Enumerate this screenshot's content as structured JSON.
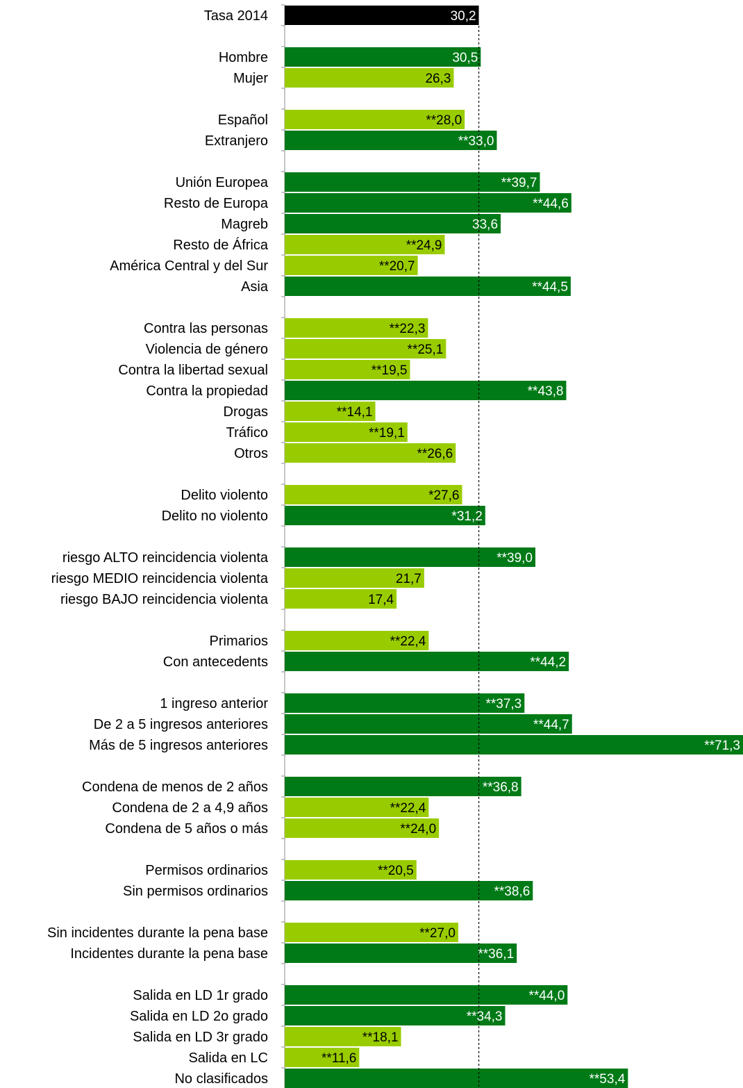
{
  "chart_data": {
    "type": "bar",
    "orientation": "horizontal",
    "title": "",
    "xlabel": "",
    "ylabel": "",
    "xlim": [
      0,
      71.3
    ],
    "reference_line": 30.2,
    "colors": {
      "total": "#000000",
      "above": "#007a17",
      "below": "#99cc00"
    },
    "groups": [
      [
        {
          "label": "Tasa 2014",
          "value": 30.2,
          "display": "30,2",
          "kind": "total"
        }
      ],
      [
        {
          "label": "Hombre",
          "value": 30.5,
          "display": "30,5",
          "kind": "above"
        },
        {
          "label": "Mujer",
          "value": 26.3,
          "display": "26,3",
          "kind": "below"
        }
      ],
      [
        {
          "label": "Español",
          "value": 28.0,
          "display": "**28,0",
          "kind": "below"
        },
        {
          "label": "Extranjero",
          "value": 33.0,
          "display": "**33,0",
          "kind": "above"
        }
      ],
      [
        {
          "label": "Unión Europea",
          "value": 39.7,
          "display": "**39,7",
          "kind": "above"
        },
        {
          "label": "Resto de Europa",
          "value": 44.6,
          "display": "**44,6",
          "kind": "above"
        },
        {
          "label": "Magreb",
          "value": 33.6,
          "display": "33,6",
          "kind": "above"
        },
        {
          "label": "Resto de África",
          "value": 24.9,
          "display": "**24,9",
          "kind": "below"
        },
        {
          "label": "América Central y del Sur",
          "value": 20.7,
          "display": "**20,7",
          "kind": "below"
        },
        {
          "label": "Asia",
          "value": 44.5,
          "display": "**44,5",
          "kind": "above"
        }
      ],
      [
        {
          "label": "Contra las personas",
          "value": 22.3,
          "display": "**22,3",
          "kind": "below"
        },
        {
          "label": "Violencia de género",
          "value": 25.1,
          "display": "**25,1",
          "kind": "below"
        },
        {
          "label": "Contra la libertad sexual",
          "value": 19.5,
          "display": "**19,5",
          "kind": "below"
        },
        {
          "label": "Contra la propiedad",
          "value": 43.8,
          "display": "**43,8",
          "kind": "above"
        },
        {
          "label": "Drogas",
          "value": 14.1,
          "display": "**14,1",
          "kind": "below"
        },
        {
          "label": "Tráfico",
          "value": 19.1,
          "display": "**19,1",
          "kind": "below"
        },
        {
          "label": "Otros",
          "value": 26.6,
          "display": "**26,6",
          "kind": "below"
        }
      ],
      [
        {
          "label": "Delito violento",
          "value": 27.6,
          "display": "*27,6",
          "kind": "below"
        },
        {
          "label": "Delito no violento",
          "value": 31.2,
          "display": "*31,2",
          "kind": "above"
        }
      ],
      [
        {
          "label": "riesgo ALTO reincidencia violenta",
          "value": 39.0,
          "display": "**39,0",
          "kind": "above"
        },
        {
          "label": "riesgo MEDIO reincidencia violenta",
          "value": 21.7,
          "display": "21,7",
          "kind": "below"
        },
        {
          "label": "riesgo BAJO reincidencia violenta",
          "value": 17.4,
          "display": "17,4",
          "kind": "below"
        }
      ],
      [
        {
          "label": "Primarios",
          "value": 22.4,
          "display": "**22,4",
          "kind": "below"
        },
        {
          "label": "Con antecedents",
          "value": 44.2,
          "display": "**44,2",
          "kind": "above"
        }
      ],
      [
        {
          "label": "1 ingreso anterior",
          "value": 37.3,
          "display": "**37,3",
          "kind": "above"
        },
        {
          "label": "De 2 a 5 ingresos anteriores",
          "value": 44.7,
          "display": "**44,7",
          "kind": "above"
        },
        {
          "label": "Más de 5 ingresos anteriores",
          "value": 71.3,
          "display": "**71,3",
          "kind": "above"
        }
      ],
      [
        {
          "label": "Condena de menos de 2 años",
          "value": 36.8,
          "display": "**36,8",
          "kind": "above"
        },
        {
          "label": "Condena de 2 a 4,9 años",
          "value": 22.4,
          "display": "**22,4",
          "kind": "below"
        },
        {
          "label": "Condena de 5 años o más",
          "value": 24.0,
          "display": "**24,0",
          "kind": "below"
        }
      ],
      [
        {
          "label": "Permisos ordinarios",
          "value": 20.5,
          "display": "**20,5",
          "kind": "below"
        },
        {
          "label": "Sin permisos ordinarios",
          "value": 38.6,
          "display": "**38,6",
          "kind": "above"
        }
      ],
      [
        {
          "label": "Sin incidentes durante la pena base",
          "value": 27.0,
          "display": "**27,0",
          "kind": "below"
        },
        {
          "label": "Incidentes durante la pena base",
          "value": 36.1,
          "display": "**36,1",
          "kind": "above"
        }
      ],
      [
        {
          "label": "Salida en LD 1r grado",
          "value": 44.0,
          "display": "**44,0",
          "kind": "above"
        },
        {
          "label": "Salida en LD 2o grado",
          "value": 34.3,
          "display": "**34,3",
          "kind": "above"
        },
        {
          "label": "Salida en LD 3r grado",
          "value": 18.1,
          "display": "**18,1",
          "kind": "below"
        },
        {
          "label": "Salida en LC",
          "value": 11.6,
          "display": "**11,6",
          "kind": "below"
        },
        {
          "label": "No clasificados",
          "value": 53.4,
          "display": "**53,4",
          "kind": "above"
        }
      ]
    ]
  }
}
